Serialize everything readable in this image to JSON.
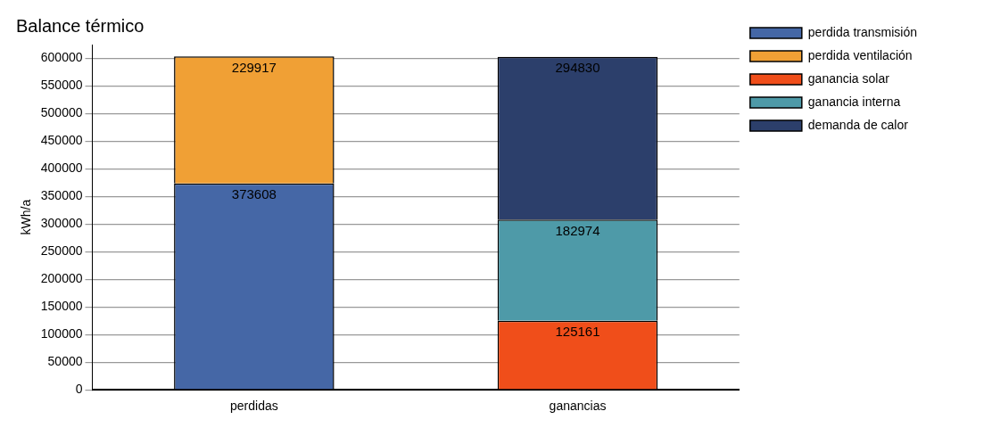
{
  "chart_data": {
    "type": "bar",
    "title": "Balance térmico",
    "ylabel": "kWh/a",
    "categories": [
      "perdidas",
      "ganancias"
    ],
    "series": [
      {
        "name": "perdida transmisión",
        "color": "#4567a6",
        "values": [
          373608,
          null
        ]
      },
      {
        "name": "perdida ventilación",
        "color": "#f0a035",
        "values": [
          229917,
          null
        ]
      },
      {
        "name": "ganancia solar",
        "color": "#f04e1a",
        "values": [
          null,
          125161
        ]
      },
      {
        "name": "ganancia interna",
        "color": "#4e9aa8",
        "values": [
          null,
          182974
        ]
      },
      {
        "name": "demanda de calor",
        "color": "#2c3f6b",
        "values": [
          null,
          294830
        ]
      }
    ],
    "stacked": true,
    "data_labels": true,
    "grid": "y",
    "legend": "right",
    "ylim": [
      0,
      625000
    ],
    "yticks": [
      0,
      50000,
      100000,
      150000,
      200000,
      250000,
      300000,
      350000,
      400000,
      450000,
      500000,
      550000,
      600000
    ]
  }
}
